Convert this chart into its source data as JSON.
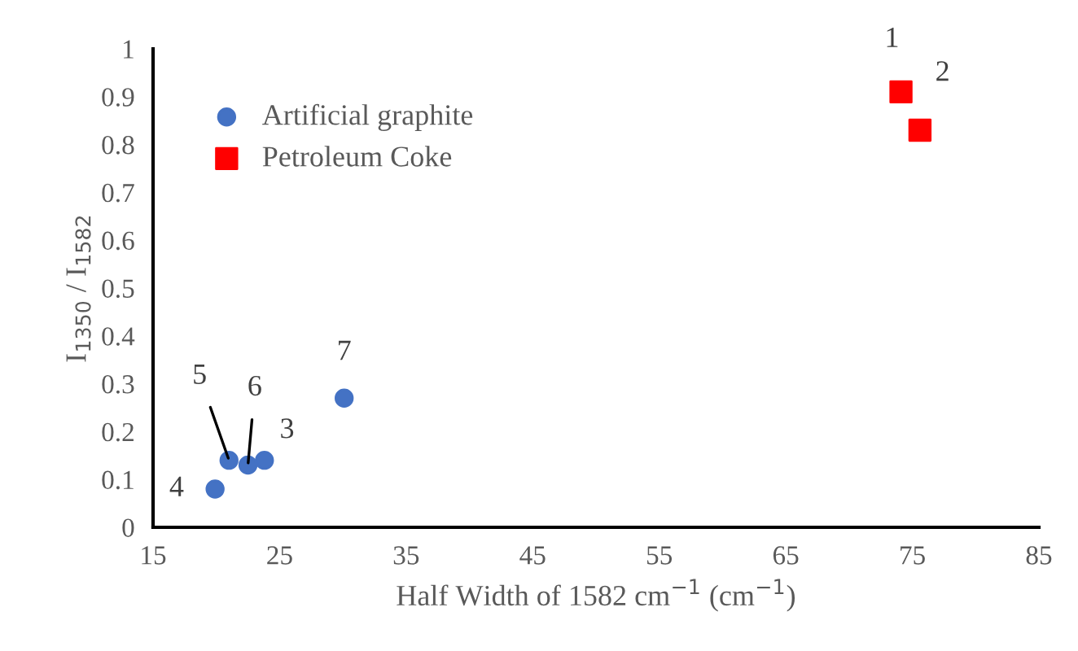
{
  "chart_data": {
    "type": "scatter",
    "xlabel": "Half Width of 1582 cm$^{−1}$ (cm$^{−1}$)",
    "ylabel": "I$_{1350}$ / I$_{1582}$",
    "xlim": [
      15,
      85
    ],
    "xticks": [
      15,
      25,
      35,
      45,
      55,
      65,
      75,
      85
    ],
    "ylim": [
      0,
      1
    ],
    "yticks": [
      0,
      0.1,
      0.2,
      0.3,
      0.4,
      0.5,
      0.6,
      0.7,
      0.8,
      0.9,
      1
    ],
    "series": [
      {
        "name": "Artificial graphite",
        "color": "#4472c4",
        "marker": "circle",
        "x": [
          23.8,
          19.9,
          21.0,
          22.5,
          30.1
        ],
        "values": [
          0.14,
          0.08,
          0.14,
          0.13,
          0.27
        ]
      },
      {
        "name": "Petroleum Coke",
        "color": "#ff0000",
        "marker": "square",
        "x": [
          74.1,
          75.6
        ],
        "values": [
          0.91,
          0.83
        ]
      }
    ],
    "annotations": [
      {
        "text": "1",
        "x": 74.1,
        "y": 0.91
      },
      {
        "text": "2",
        "x": 75.6,
        "y": 0.83
      },
      {
        "text": "3",
        "x": 23.8,
        "y": 0.14
      },
      {
        "text": "4",
        "x": 19.9,
        "y": 0.08
      },
      {
        "text": "5",
        "x": 21.0,
        "y": 0.14
      },
      {
        "text": "6",
        "x": 22.5,
        "y": 0.13
      },
      {
        "text": "7",
        "x": 30.1,
        "y": 0.27
      }
    ],
    "legend": "top left",
    "grid": false
  }
}
